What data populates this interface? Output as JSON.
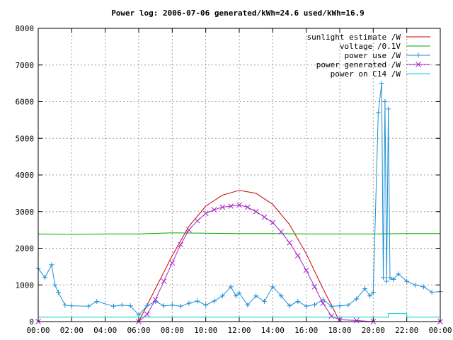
{
  "chart_data": {
    "type": "line",
    "title": "Power log: 2006-07-06 generated/kWh=24.6 used/kWh=16.9",
    "xlabel": "",
    "ylabel": "",
    "xlim_hours": [
      0,
      24
    ],
    "ylim": [
      0,
      8000
    ],
    "x_ticks": [
      "00:00",
      "02:00",
      "04:00",
      "06:00",
      "08:00",
      "10:00",
      "12:00",
      "14:00",
      "16:00",
      "18:00",
      "20:00",
      "22:00",
      "00:00"
    ],
    "y_ticks": [
      "0",
      "1000",
      "2000",
      "3000",
      "4000",
      "5000",
      "6000",
      "7000",
      "8000"
    ],
    "grid": true,
    "legend_position": "top-right",
    "series": [
      {
        "name": "sunlight estimate /W",
        "color": "#cc0000",
        "marker": "none",
        "x": [
          6.0,
          7.0,
          8.0,
          9.0,
          10.0,
          11.0,
          12.0,
          13.0,
          14.0,
          15.0,
          16.0,
          17.0,
          18.0
        ],
        "values": [
          0,
          900,
          1800,
          2600,
          3150,
          3450,
          3580,
          3500,
          3200,
          2650,
          1850,
          900,
          0
        ]
      },
      {
        "name": "voltage /0.1V",
        "color": "#00aa00",
        "marker": "none",
        "x": [
          0,
          2,
          4,
          6,
          8,
          10,
          12,
          14,
          16,
          18,
          20,
          22,
          24
        ],
        "values": [
          2390,
          2380,
          2390,
          2390,
          2420,
          2410,
          2400,
          2400,
          2390,
          2390,
          2390,
          2400,
          2400
        ]
      },
      {
        "name": "power use /W",
        "color": "#1f8fd6",
        "marker": "plus",
        "x": [
          0.0,
          0.4,
          0.8,
          1.0,
          1.2,
          1.6,
          2.0,
          3.0,
          3.5,
          4.5,
          5.0,
          5.5,
          6.0,
          6.5,
          7.0,
          7.5,
          8.0,
          8.5,
          9.0,
          9.5,
          10.0,
          10.5,
          11.0,
          11.5,
          11.8,
          12.0,
          12.5,
          13.0,
          13.5,
          14.0,
          14.5,
          15.0,
          15.5,
          16.0,
          16.5,
          17.0,
          17.5,
          18.0,
          18.5,
          19.0,
          19.5,
          19.8,
          20.0,
          20.3,
          20.5,
          20.6,
          20.7,
          20.8,
          20.9,
          21.0,
          21.2,
          21.5,
          22.0,
          22.5,
          23.0,
          23.5,
          24.0
        ],
        "values": [
          1450,
          1200,
          1550,
          1000,
          800,
          450,
          430,
          420,
          550,
          420,
          450,
          430,
          180,
          430,
          550,
          430,
          450,
          420,
          500,
          560,
          450,
          560,
          700,
          950,
          700,
          780,
          450,
          700,
          550,
          950,
          700,
          430,
          550,
          420,
          460,
          600,
          420,
          430,
          450,
          620,
          900,
          700,
          800,
          5700,
          6500,
          1200,
          6000,
          1100,
          5800,
          1200,
          1150,
          1300,
          1100,
          1000,
          950,
          800,
          820
        ]
      },
      {
        "name": "power generated /W",
        "color": "#aa22cc",
        "marker": "cross",
        "x": [
          0.0,
          6.0,
          6.5,
          7.0,
          7.5,
          8.0,
          8.5,
          9.0,
          9.5,
          10.0,
          10.5,
          11.0,
          11.5,
          12.0,
          12.5,
          13.0,
          13.5,
          14.0,
          14.5,
          15.0,
          15.5,
          16.0,
          16.5,
          17.0,
          17.5,
          18.0,
          19.0,
          20.0,
          24.0
        ],
        "values": [
          0,
          0,
          200,
          600,
          1100,
          1600,
          2100,
          2500,
          2750,
          2950,
          3050,
          3120,
          3150,
          3180,
          3120,
          3000,
          2850,
          2700,
          2450,
          2150,
          1800,
          1400,
          950,
          500,
          150,
          50,
          30,
          0,
          0
        ]
      },
      {
        "name": "power on C14 /W",
        "color": "#00cccc",
        "marker": "none",
        "x": [
          0,
          20.0,
          20.9,
          20.9,
          22.0,
          22.0,
          24.0
        ],
        "values": [
          120,
          120,
          120,
          220,
          220,
          120,
          120
        ]
      }
    ]
  }
}
